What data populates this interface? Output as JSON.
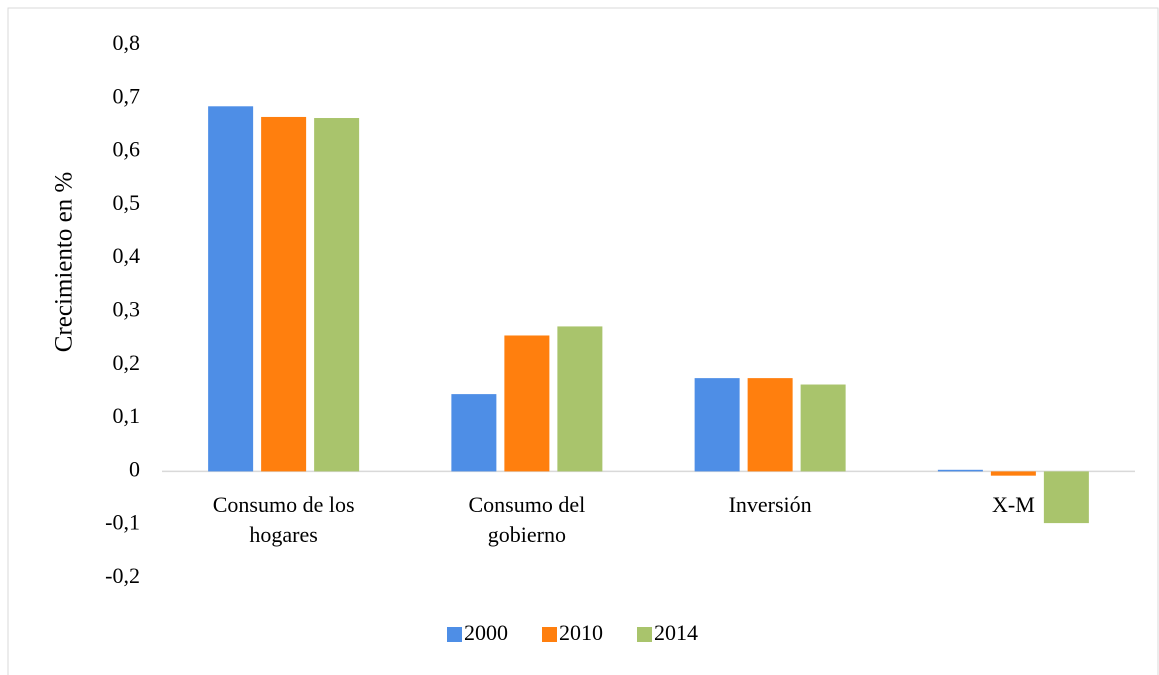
{
  "chart_data": {
    "type": "bar",
    "y_label": "Crecimiento en %",
    "categories": [
      "Consumo de los hogares",
      "Consumo del gobierno",
      "Inversión",
      "X-M"
    ],
    "series": [
      {
        "name": "2000",
        "color": "#4e8ee6",
        "values": [
          0.685,
          0.145,
          0.175,
          0.003
        ]
      },
      {
        "name": "2010",
        "color": "#ff7f0e",
        "values": [
          0.665,
          0.255,
          0.175,
          -0.008
        ]
      },
      {
        "name": "2014",
        "color": "#a9c46c",
        "values": [
          0.663,
          0.272,
          0.163,
          -0.097
        ]
      }
    ],
    "ylim": [
      -0.2,
      0.8
    ],
    "yticks": [
      {
        "value": -0.2,
        "label": "-0,2"
      },
      {
        "value": -0.1,
        "label": "-0,1"
      },
      0,
      {
        "value": 0.1,
        "label": "0,1"
      },
      {
        "value": 0.2,
        "label": "0,2"
      },
      {
        "value": 0.3,
        "label": "0,3"
      },
      {
        "value": 0.4,
        "label": "0,4"
      },
      {
        "value": 0.5,
        "label": "0,5"
      },
      {
        "value": 0.6,
        "label": "0,6"
      },
      {
        "value": 0.7,
        "label": "0,7"
      },
      {
        "value": 0.8,
        "label": "0,8"
      }
    ],
    "grid": false,
    "legend": "bottom"
  }
}
